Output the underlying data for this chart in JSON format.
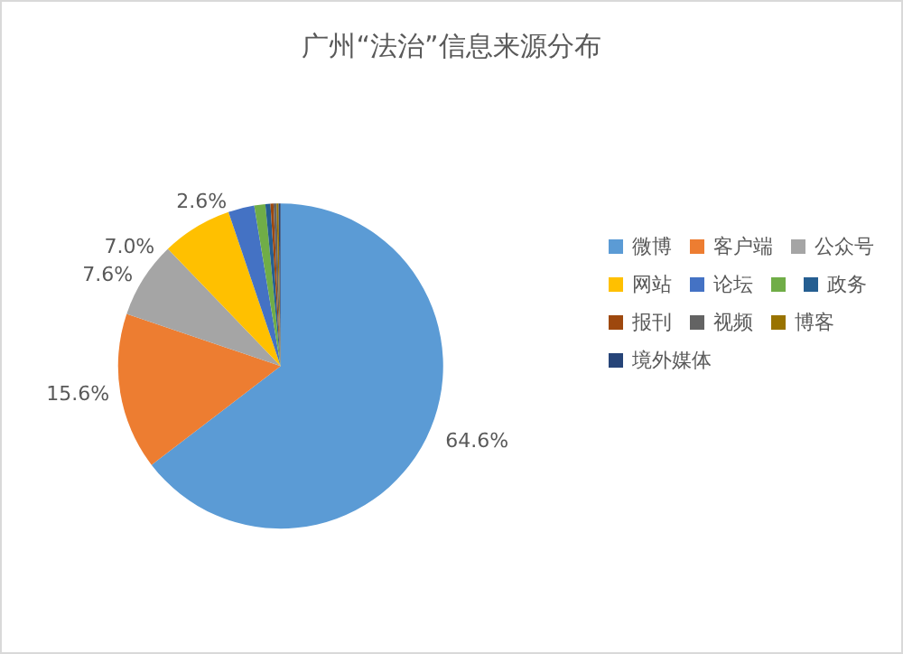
{
  "chart_data": {
    "type": "pie",
    "title": "广州“法治”信息来源分布",
    "categories": [
      "微博",
      "客户端",
      "公众号",
      "网站",
      "论坛",
      null,
      "政务",
      "报刊",
      "视频",
      "博客",
      "境外媒体"
    ],
    "values": [
      64.6,
      15.6,
      7.6,
      7.0,
      2.6,
      1.1,
      0.5,
      0.3,
      0.3,
      0.2,
      0.2
    ],
    "colors": [
      "#5b9bd5",
      "#ed7d31",
      "#a5a5a5",
      "#ffc000",
      "#4472c4",
      "#70ad47",
      "#255e91",
      "#9e480e",
      "#636363",
      "#997300",
      "#264478"
    ],
    "value_labels": [
      "64.6%",
      "15.6%",
      "7.6%",
      "7.0%",
      "2.6%",
      null,
      null,
      null,
      null,
      null,
      null
    ],
    "legend": "right"
  }
}
